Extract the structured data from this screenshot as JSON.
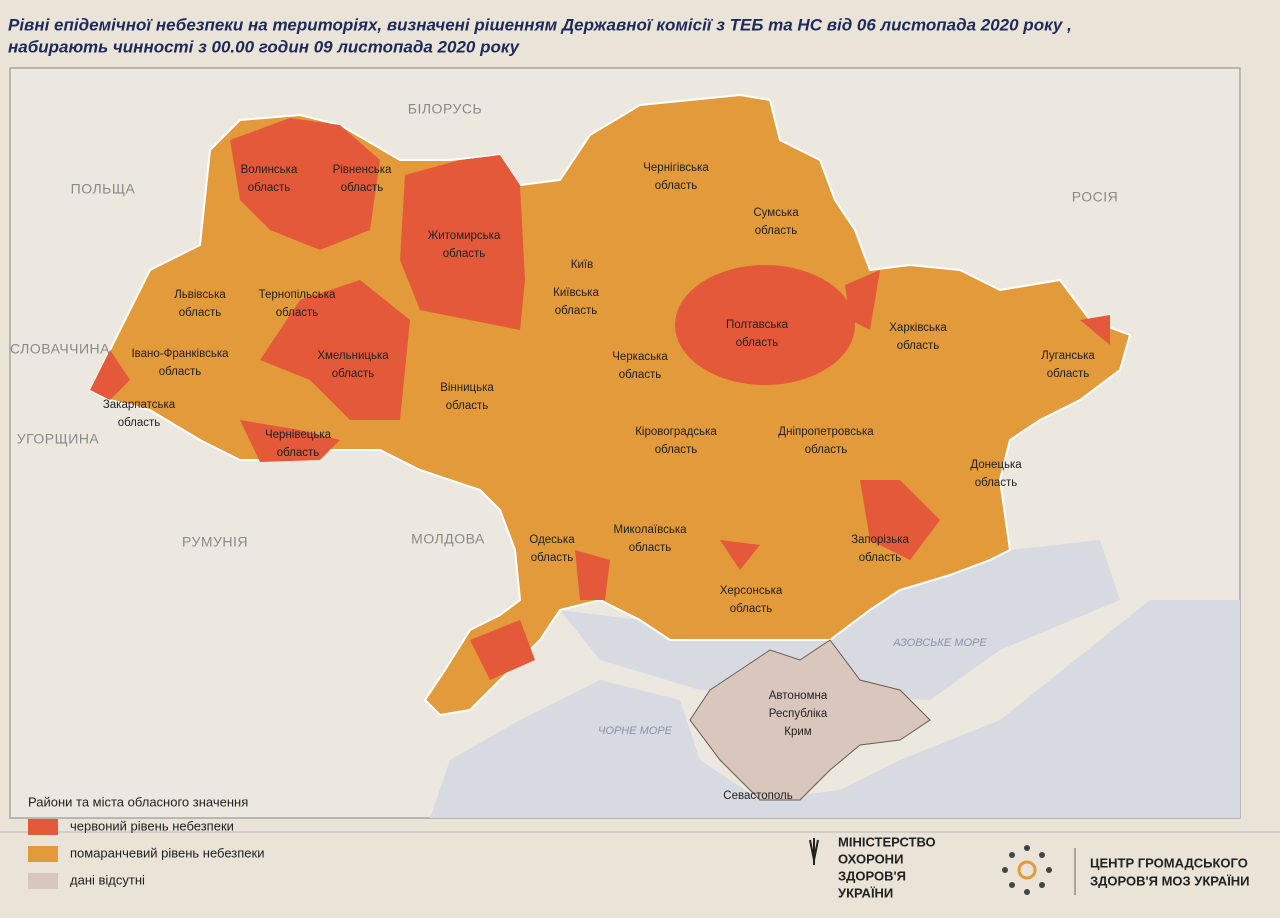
{
  "header": {
    "title_lines": [
      "Рівні епідемічної небезпеки на територіях, визначені рішенням Державної комісії з ТЕБ та НС від 06 листопада 2020 року ,",
      "набирають чинності з 00.00 годин 09 листопада 2020 року"
    ]
  },
  "map": {
    "countries": [
      "БІЛОРУСЬ",
      "ПОЛЬЩА",
      "РОСІЯ",
      "СЛОВАЧЧИНА",
      "УГОРЩИНА",
      "РУМУНІЯ",
      "МОЛДОВА"
    ],
    "seas": [
      "ЧОРНЕ МОРЕ",
      "АЗОВСЬКЕ МОРЕ"
    ],
    "regions": [
      {
        "lines": [
          "Волинська",
          "область"
        ]
      },
      {
        "lines": [
          "Рівненська",
          "область"
        ]
      },
      {
        "lines": [
          "Житомирська",
          "область"
        ]
      },
      {
        "lines": [
          "Чернігівська",
          "область"
        ]
      },
      {
        "lines": [
          "Сумська",
          "область"
        ]
      },
      {
        "lines": [
          "Київ"
        ]
      },
      {
        "lines": [
          "Київська",
          "область"
        ]
      },
      {
        "lines": [
          "Львівська",
          "область"
        ]
      },
      {
        "lines": [
          "Тернопільська",
          "область"
        ]
      },
      {
        "lines": [
          "Хмельницька",
          "область"
        ]
      },
      {
        "lines": [
          "Івано-Франківська",
          "область"
        ]
      },
      {
        "lines": [
          "Закарпатська",
          "область"
        ]
      },
      {
        "lines": [
          "Чернівецька",
          "область"
        ]
      },
      {
        "lines": [
          "Вінницька",
          "область"
        ]
      },
      {
        "lines": [
          "Черкаська",
          "область"
        ]
      },
      {
        "lines": [
          "Полтавська",
          "область"
        ]
      },
      {
        "lines": [
          "Харківська",
          "область"
        ]
      },
      {
        "lines": [
          "Луганська",
          "область"
        ]
      },
      {
        "lines": [
          "Кіровоградська",
          "область"
        ]
      },
      {
        "lines": [
          "Дніпропетровська",
          "область"
        ]
      },
      {
        "lines": [
          "Донецька",
          "область"
        ]
      },
      {
        "lines": [
          "Одеська",
          "область"
        ]
      },
      {
        "lines": [
          "Миколаївська",
          "область"
        ]
      },
      {
        "lines": [
          "Запорізька",
          "область"
        ]
      },
      {
        "lines": [
          "Херсонська",
          "область"
        ]
      },
      {
        "lines": [
          "Автономна",
          "Республіка",
          "Крим"
        ]
      },
      {
        "lines": [
          "Севастополь"
        ]
      }
    ]
  },
  "legend": {
    "title": "Райони та міста обласного значення",
    "items": [
      {
        "label": "червоний рівень небезпеки",
        "color": "#e3593a"
      },
      {
        "label": "помаранчевий рівень небезпеки",
        "color": "#e29a3a"
      },
      {
        "label": "дані відсутні",
        "color": "#d9c7bd"
      }
    ]
  },
  "footer": {
    "ministry_lines": [
      "МІНІСТЕРСТВО",
      "ОХОРОНИ",
      "ЗДОРОВ'Я",
      "УКРАЇНИ"
    ],
    "center_lines": [
      "ЦЕНТР ГРОМАДСЬКОГО",
      "ЗДОРОВ'Я МОЗ УКРАЇНИ"
    ]
  }
}
